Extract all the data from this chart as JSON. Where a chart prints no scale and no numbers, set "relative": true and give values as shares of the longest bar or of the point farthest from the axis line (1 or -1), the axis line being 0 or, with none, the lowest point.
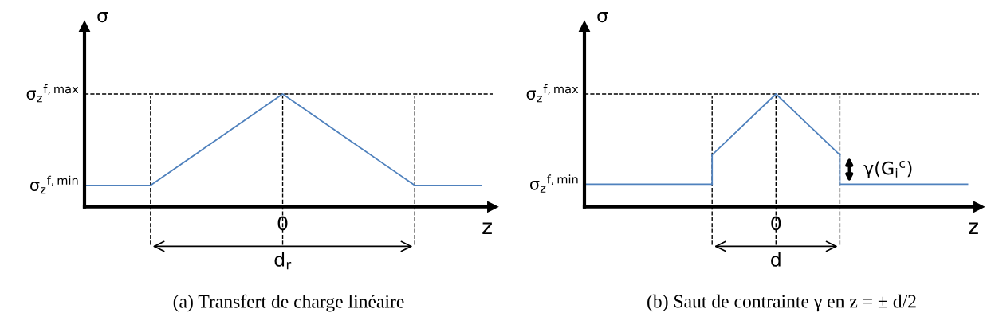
{
  "chart_data": [
    {
      "type": "line",
      "relative": true,
      "ylabel": "σ",
      "xlabel": "z",
      "categories": [
        null,
        null,
        null,
        null,
        null,
        null,
        null
      ],
      "series": [
        {
          "color": "#4f81bd",
          "values": [
            0.19,
            0.19,
            0.595,
            1,
            0.595,
            0.19,
            0.19
          ]
        }
      ],
      "annotations": [
        "σ$_{z}$$^{f,min}$",
        "σ$_{z}$$^{f,max}$",
        "0",
        "d$_{r}$",
        "(a) Transfert de charge linéaire"
      ],
      "marker": "none",
      "line_style": "solid",
      "grid": true
    },
    {
      "type": "line",
      "relative": true,
      "ylabel": "σ",
      "xlabel": "z",
      "categories": [
        null,
        null,
        null,
        null,
        null,
        null,
        null
      ],
      "series": [
        {
          "color": "#4f81bd",
          "values": [
            0.2,
            0.2,
            0.2,
            null,
            0.2,
            0.2,
            0.2
          ]
        },
        {
          "color": "#4f81bd",
          "values": [
            null,
            null,
            0.46,
            1,
            0.46,
            null,
            null
          ]
        }
      ],
      "annotations": [
        "σ$_{z}$$^{f,min}$",
        "σ$_{z}$$^{f,max}$",
        "0",
        "d",
        "γ(G$_{i}$$^{c}$)",
        "(b) Saut de contrainte γ en z = ± d/2"
      ],
      "marker": "none",
      "line_style": "solid",
      "grid": true
    }
  ]
}
